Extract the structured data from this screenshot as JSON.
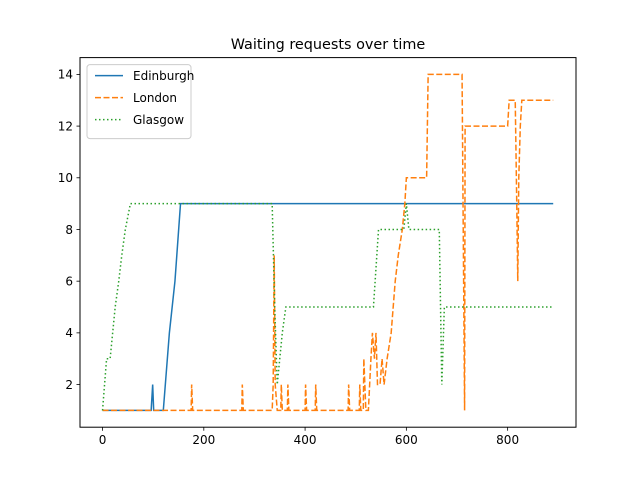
{
  "chart_data": {
    "type": "line",
    "title": "Waiting requests over time",
    "xlabel": "",
    "ylabel": "",
    "xlim": [
      -44.5,
      935
    ],
    "ylim": [
      0.35,
      14.65
    ],
    "xticks": [
      0,
      200,
      400,
      600,
      800
    ],
    "yticks": [
      2,
      4,
      6,
      8,
      10,
      12,
      14
    ],
    "grid": false,
    "legend": "top-left",
    "series": [
      {
        "name": "Edinburgh",
        "color": "#1f77b4",
        "style": "solid",
        "points": [
          [
            0,
            1
          ],
          [
            96,
            1
          ],
          [
            99,
            2
          ],
          [
            101,
            1
          ],
          [
            120,
            1
          ],
          [
            132,
            4
          ],
          [
            143,
            6
          ],
          [
            154,
            9
          ],
          [
            340,
            9
          ],
          [
            890,
            9
          ]
        ]
      },
      {
        "name": "London",
        "color": "#ff7f0e",
        "style": "dashed",
        "points": [
          [
            0,
            1
          ],
          [
            175,
            1
          ],
          [
            176,
            2
          ],
          [
            178,
            1
          ],
          [
            275,
            1
          ],
          [
            276,
            2
          ],
          [
            278,
            1
          ],
          [
            335,
            1
          ],
          [
            337,
            2
          ],
          [
            339,
            7
          ],
          [
            341,
            2
          ],
          [
            345,
            1
          ],
          [
            352,
            1
          ],
          [
            353,
            2
          ],
          [
            355,
            1
          ],
          [
            365,
            1
          ],
          [
            366,
            2
          ],
          [
            368,
            1
          ],
          [
            400,
            1
          ],
          [
            401,
            2
          ],
          [
            403,
            1
          ],
          [
            420,
            1
          ],
          [
            421,
            2
          ],
          [
            423,
            1
          ],
          [
            485,
            1
          ],
          [
            486,
            2
          ],
          [
            488,
            1
          ],
          [
            507,
            1
          ],
          [
            508,
            2
          ],
          [
            510,
            1
          ],
          [
            515,
            1
          ],
          [
            516,
            3
          ],
          [
            520,
            1
          ],
          [
            525,
            1
          ],
          [
            530,
            3
          ],
          [
            533,
            4
          ],
          [
            537,
            3
          ],
          [
            540,
            4
          ],
          [
            543,
            2
          ],
          [
            548,
            2
          ],
          [
            552,
            3
          ],
          [
            556,
            2
          ],
          [
            562,
            3
          ],
          [
            570,
            4
          ],
          [
            578,
            6
          ],
          [
            584,
            7
          ],
          [
            592,
            8
          ],
          [
            597,
            9
          ],
          [
            600,
            10
          ],
          [
            640,
            10
          ],
          [
            643,
            14
          ],
          [
            710,
            14
          ],
          [
            715,
            1
          ],
          [
            716,
            12
          ],
          [
            800,
            12
          ],
          [
            803,
            13
          ],
          [
            815,
            13
          ],
          [
            818,
            9
          ],
          [
            820,
            6
          ],
          [
            822,
            10
          ],
          [
            825,
            12
          ],
          [
            828,
            13
          ],
          [
            890,
            13
          ]
        ]
      },
      {
        "name": "Glasgow",
        "color": "#2ca02c",
        "style": "dotted",
        "points": [
          [
            0,
            1
          ],
          [
            8,
            3
          ],
          [
            15,
            3
          ],
          [
            25,
            5
          ],
          [
            32,
            6
          ],
          [
            38,
            7
          ],
          [
            45,
            8
          ],
          [
            55,
            9
          ],
          [
            335,
            9
          ],
          [
            340,
            5
          ],
          [
            345,
            2
          ],
          [
            350,
            3
          ],
          [
            355,
            4
          ],
          [
            362,
            5
          ],
          [
            535,
            5
          ],
          [
            545,
            8
          ],
          [
            595,
            8
          ],
          [
            600,
            9
          ],
          [
            605,
            8
          ],
          [
            665,
            8
          ],
          [
            670,
            2
          ],
          [
            675,
            5
          ],
          [
            890,
            5
          ]
        ]
      }
    ]
  }
}
